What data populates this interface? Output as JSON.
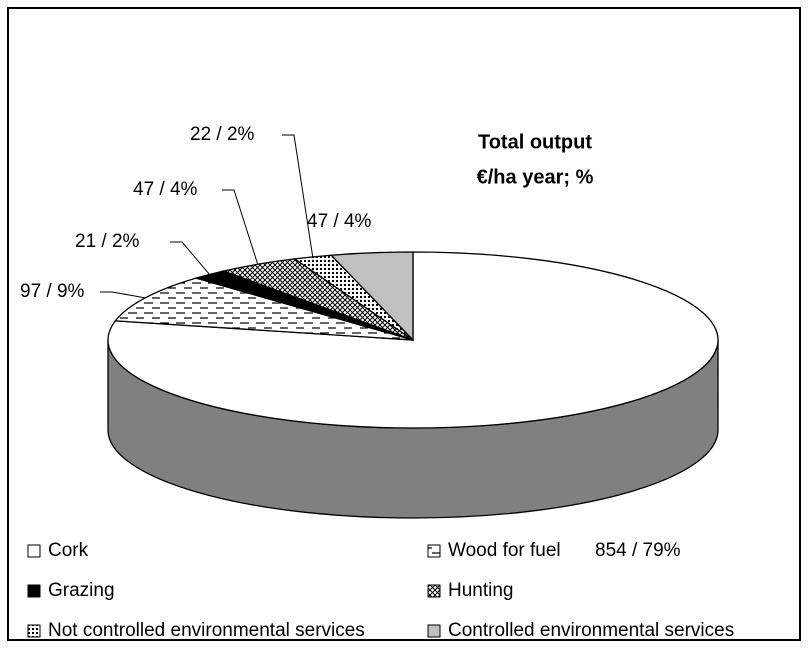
{
  "chart_data": {
    "type": "pie3d",
    "title": "Total output",
    "subtitle": "€/ha year; %",
    "categories": [
      "Cork",
      "Wood for fuel",
      "Grazing",
      "Hunting",
      "Not controlled environmental services",
      "Controlled environmental services"
    ],
    "values": [
      854,
      97,
      21,
      47,
      22,
      47
    ],
    "value_labels": [
      "854 / 79%",
      "97 / 9%",
      "21 / 2%",
      "47 / 4%",
      "22 / 2%",
      "47 / 4%"
    ],
    "patterns": [
      "white",
      "dashes",
      "black",
      "hatch",
      "dots",
      "gray"
    ],
    "side_color": "#808080"
  }
}
